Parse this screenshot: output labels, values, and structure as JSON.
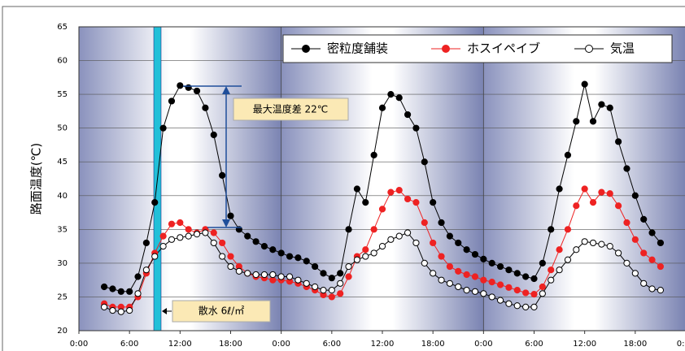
{
  "chart_data": {
    "type": "line",
    "ylabel": "路面温度(℃)",
    "annotations": [
      "最大温度差  22℃",
      "散水  6ℓ/㎡"
    ],
    "xlim": [
      0,
      72
    ],
    "xticks": [
      {
        "value": 0,
        "label": "0:00"
      },
      {
        "value": 6,
        "label": "6:00"
      },
      {
        "value": 12,
        "label": "12:00"
      },
      {
        "value": 18,
        "label": "18:00"
      },
      {
        "value": 24,
        "label": "0:00"
      },
      {
        "value": 30,
        "label": "6:00"
      },
      {
        "value": 36,
        "label": "12:00"
      },
      {
        "value": 42,
        "label": "18:00"
      },
      {
        "value": 48,
        "label": "0:00"
      },
      {
        "value": 54,
        "label": "6:00"
      },
      {
        "value": 60,
        "label": "12:00"
      },
      {
        "value": 66,
        "label": "18:00"
      },
      {
        "value": 72,
        "label": "0:00"
      }
    ],
    "ylim": [
      20,
      65
    ],
    "yticks": [
      20,
      25,
      30,
      35,
      40,
      45,
      50,
      55,
      60,
      65
    ],
    "grid": true,
    "legend": "top-right",
    "x": [
      3,
      4,
      5,
      6,
      7,
      8,
      9,
      10,
      11,
      12,
      13,
      14,
      15,
      16,
      17,
      18,
      19,
      20,
      21,
      22,
      23,
      24,
      25,
      26,
      27,
      28,
      29,
      30,
      31,
      32,
      33,
      34,
      35,
      36,
      37,
      38,
      39,
      40,
      41,
      42,
      43,
      44,
      45,
      46,
      47,
      48,
      49,
      50,
      51,
      52,
      53,
      54,
      55,
      56,
      57,
      58,
      59,
      60,
      61,
      62,
      63,
      64,
      65,
      66,
      67,
      68,
      69
    ],
    "series": [
      {
        "name": "密粒度舗装",
        "color": "#000000",
        "marker_fill": "#000000",
        "values": [
          26.5,
          26.2,
          25.8,
          25.8,
          28,
          33,
          39,
          50,
          54,
          56.3,
          56,
          55.5,
          53,
          49,
          43,
          37,
          35,
          34,
          33.2,
          32.5,
          32,
          31.5,
          31,
          30.8,
          30.3,
          29.5,
          28.5,
          27.8,
          28.5,
          35,
          41,
          39,
          46,
          53,
          55,
          54.5,
          52,
          50,
          45,
          39,
          36,
          34,
          33,
          32,
          31.3,
          30.6,
          30,
          29.5,
          29,
          28.5,
          28,
          27.7,
          30,
          35,
          41,
          46,
          51,
          56.5,
          51,
          53.5,
          53,
          48,
          44,
          40,
          36.5,
          34.5,
          33
        ]
      },
      {
        "name": "ホスイペイブ",
        "color": "#ee2222",
        "marker_fill": "#ee2222",
        "values": [
          24,
          23.5,
          23.5,
          23.5,
          25,
          28.5,
          31.5,
          34,
          35.8,
          36,
          35,
          34.5,
          35,
          34.5,
          33,
          31,
          29.5,
          28.5,
          28,
          27.8,
          27.5,
          27.5,
          27.3,
          27,
          26.5,
          26,
          25.3,
          25,
          25.5,
          28,
          31,
          32,
          35,
          38,
          40.5,
          40.8,
          39.5,
          39,
          36,
          33,
          31,
          29.5,
          28.8,
          28.3,
          28,
          27.5,
          27.2,
          26.8,
          26.4,
          26,
          25.6,
          25.4,
          26.5,
          29,
          32,
          35,
          38.5,
          41,
          39,
          40.5,
          40.3,
          38.5,
          36,
          33.5,
          31.5,
          30.5,
          29.5
        ]
      },
      {
        "name": "気温",
        "color": "#000000",
        "marker_fill": "#ffffff",
        "values": [
          23.5,
          23,
          22.8,
          23,
          25.5,
          29,
          31,
          32.5,
          33.5,
          33.8,
          34,
          34.3,
          34.5,
          33,
          31,
          29.5,
          28.8,
          28.5,
          28.3,
          28.3,
          28.3,
          28,
          28,
          27.5,
          27,
          26.5,
          26,
          26,
          27,
          29.5,
          30.5,
          31,
          31.5,
          32.5,
          33.5,
          34,
          34.5,
          33,
          30,
          28.5,
          27.5,
          27,
          26.5,
          26,
          25.8,
          25.5,
          25,
          24.5,
          24,
          23.7,
          23.5,
          23.5,
          25.5,
          27.5,
          29,
          30.5,
          32,
          33.2,
          33,
          32.8,
          32.5,
          31.5,
          30,
          28.5,
          27,
          26.2,
          26
        ]
      }
    ]
  }
}
